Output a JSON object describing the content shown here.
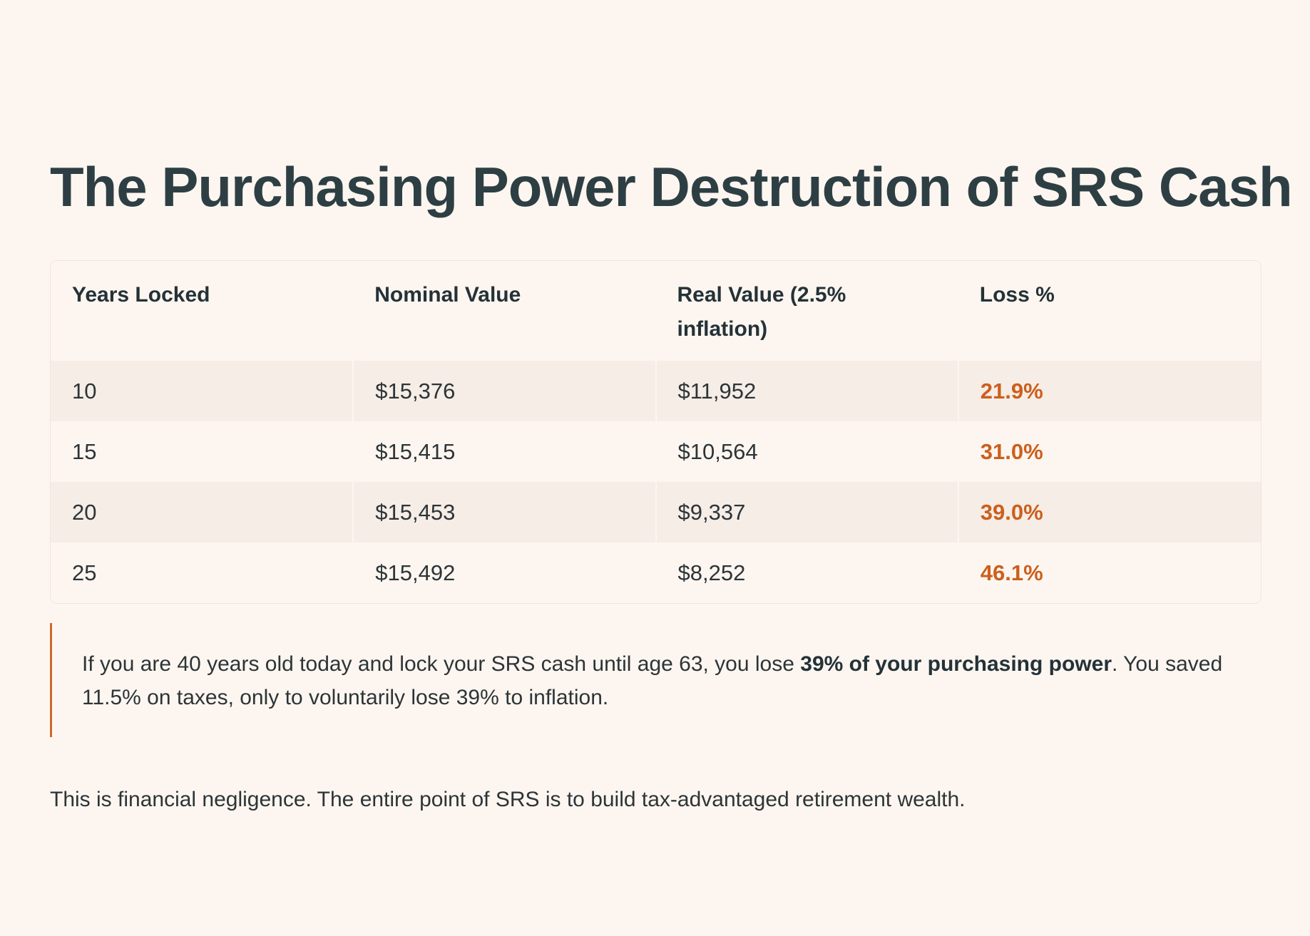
{
  "title": "The Purchasing Power Destruction of SRS Cash",
  "table": {
    "headers": [
      "Years Locked",
      "Nominal Value",
      "Real Value (2.5% inflation)",
      "Loss %"
    ],
    "rows": [
      {
        "years": "10",
        "nominal": "$15,376",
        "real": "$11,952",
        "loss": "21.9%"
      },
      {
        "years": "15",
        "nominal": "$15,415",
        "real": "$10,564",
        "loss": "31.0%"
      },
      {
        "years": "20",
        "nominal": "$15,453",
        "real": "$9,337",
        "loss": "39.0%"
      },
      {
        "years": "25",
        "nominal": "$15,492",
        "real": "$8,252",
        "loss": "46.1%"
      }
    ]
  },
  "callout": {
    "before": "If you are 40 years old today and lock your SRS cash until age 63, you lose ",
    "emphasis": "39% of your purchasing power",
    "after": ". You saved 11.5% on taxes, only to voluntarily lose 39% to inflation."
  },
  "closing": "This is financial negligence. The entire point of SRS is to build tax-advantaged retirement wealth.",
  "colors": {
    "background": "#fdf6f0",
    "accent": "#cc5f1c",
    "text": "#2d3438"
  }
}
